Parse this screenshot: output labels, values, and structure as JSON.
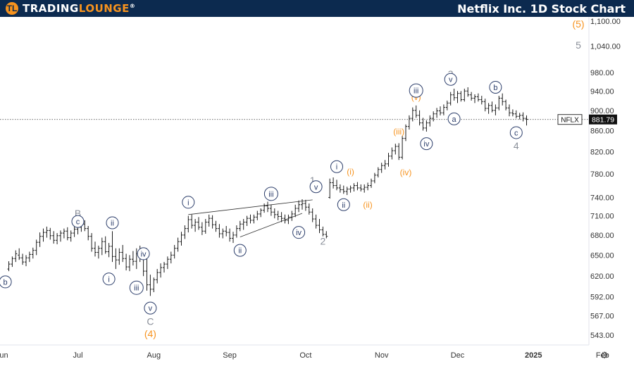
{
  "brand": {
    "logo_letter": "TL",
    "name_part1": "TRADING",
    "name_part2": "LOUNGE",
    "trademark": "®"
  },
  "title": "Netflix Inc. 1D Stock Chart",
  "colors": {
    "header_bg": "#0c2a4f",
    "accent": "#f7931e",
    "wave_circle": "#2c3e6b",
    "wave_gray": "#8a8f99",
    "wave_orange": "#f7931e",
    "bar": "#1a1a1a"
  },
  "chart_data": {
    "type": "ohlc",
    "symbol": "NFLX",
    "last_price": "881.79",
    "price_axis": {
      "ticks": [
        1100,
        1040,
        980,
        940,
        900,
        860,
        820,
        780,
        740,
        710,
        680,
        650,
        620,
        592,
        567,
        543
      ],
      "labels": [
        "1,100.00",
        "1,040.00",
        "980.00",
        "940.00",
        "900.00",
        "860.00",
        "820.00",
        "780.00",
        "740.00",
        "710.00",
        "680.00",
        "650.00",
        "620.00",
        "592.00",
        "567.00",
        "543.00"
      ],
      "scale": "log"
    },
    "time_axis": {
      "labels": [
        "Jun",
        "Jul",
        "Aug",
        "Sep",
        "Oct",
        "Nov",
        "Dec",
        "2025",
        "Feb"
      ],
      "bar_index": [
        -2,
        20,
        42,
        64,
        86,
        108,
        130,
        152,
        172
      ]
    },
    "bars": [
      [
        630,
        641,
        627,
        637
      ],
      [
        637,
        648,
        633,
        645
      ],
      [
        645,
        657,
        640,
        652
      ],
      [
        650,
        660,
        643,
        646
      ],
      [
        646,
        652,
        636,
        640
      ],
      [
        640,
        650,
        634,
        646
      ],
      [
        646,
        655,
        640,
        651
      ],
      [
        651,
        661,
        645,
        657
      ],
      [
        657,
        673,
        650,
        669
      ],
      [
        669,
        684,
        662,
        678
      ],
      [
        678,
        690,
        670,
        684
      ],
      [
        684,
        693,
        676,
        687
      ],
      [
        687,
        691,
        673,
        679
      ],
      [
        679,
        686,
        667,
        672
      ],
      [
        672,
        683,
        666,
        679
      ],
      [
        679,
        687,
        670,
        683
      ],
      [
        683,
        690,
        675,
        686
      ],
      [
        686,
        692,
        672,
        676
      ],
      [
        676,
        687,
        670,
        683
      ],
      [
        683,
        694,
        677,
        689
      ],
      [
        689,
        697,
        681,
        692
      ],
      [
        692,
        702,
        685,
        697
      ],
      [
        697,
        703,
        686,
        690
      ],
      [
        690,
        694,
        672,
        678
      ],
      [
        678,
        683,
        655,
        660
      ],
      [
        660,
        670,
        648,
        654
      ],
      [
        654,
        664,
        645,
        660
      ],
      [
        660,
        676,
        650,
        670
      ],
      [
        670,
        678,
        652,
        655
      ],
      [
        655,
        668,
        647,
        663
      ],
      [
        663,
        686,
        640,
        648
      ],
      [
        648,
        660,
        630,
        643
      ],
      [
        643,
        660,
        636,
        654
      ],
      [
        654,
        665,
        640,
        645
      ],
      [
        645,
        652,
        628,
        633
      ],
      [
        633,
        650,
        627,
        644
      ],
      [
        644,
        656,
        635,
        641
      ],
      [
        641,
        660,
        630,
        652
      ],
      [
        652,
        664,
        640,
        646
      ],
      [
        646,
        655,
        620,
        627
      ],
      [
        627,
        660,
        600,
        608
      ],
      [
        608,
        622,
        593,
        602
      ],
      [
        602,
        618,
        598,
        615
      ],
      [
        615,
        630,
        610,
        625
      ],
      [
        625,
        638,
        618,
        632
      ],
      [
        632,
        640,
        625,
        637
      ],
      [
        637,
        648,
        630,
        644
      ],
      [
        644,
        655,
        638,
        650
      ],
      [
        650,
        665,
        645,
        660
      ],
      [
        660,
        676,
        655,
        670
      ],
      [
        670,
        685,
        664,
        680
      ],
      [
        680,
        695,
        674,
        690
      ],
      [
        690,
        710,
        684,
        704
      ],
      [
        704,
        712,
        690,
        695
      ],
      [
        695,
        705,
        685,
        700
      ],
      [
        700,
        708,
        688,
        692
      ],
      [
        692,
        700,
        680,
        686
      ],
      [
        686,
        705,
        682,
        700
      ],
      [
        700,
        712,
        693,
        706
      ],
      [
        706,
        711,
        690,
        696
      ],
      [
        696,
        702,
        685,
        690
      ],
      [
        690,
        697,
        676,
        682
      ],
      [
        682,
        690,
        675,
        686
      ],
      [
        686,
        694,
        678,
        684
      ],
      [
        684,
        690,
        670,
        675
      ],
      [
        675,
        685,
        668,
        680
      ],
      [
        680,
        695,
        676,
        690
      ],
      [
        690,
        702,
        686,
        697
      ],
      [
        697,
        705,
        688,
        700
      ],
      [
        700,
        710,
        694,
        706
      ],
      [
        706,
        712,
        698,
        703
      ],
      [
        703,
        712,
        698,
        708
      ],
      [
        708,
        718,
        703,
        713
      ],
      [
        713,
        722,
        708,
        719
      ],
      [
        719,
        730,
        715,
        726
      ],
      [
        726,
        733,
        716,
        722
      ],
      [
        722,
        728,
        710,
        716
      ],
      [
        716,
        722,
        706,
        712
      ],
      [
        712,
        718,
        703,
        709
      ],
      [
        709,
        716,
        700,
        706
      ],
      [
        706,
        712,
        698,
        703
      ],
      [
        703,
        712,
        697,
        708
      ],
      [
        708,
        718,
        702,
        713
      ],
      [
        713,
        728,
        708,
        722
      ],
      [
        722,
        735,
        716,
        728
      ],
      [
        728,
        737,
        720,
        730
      ],
      [
        730,
        736,
        718,
        724
      ],
      [
        724,
        730,
        712,
        716
      ],
      [
        716,
        722,
        700,
        705
      ],
      [
        705,
        712,
        690,
        695
      ],
      [
        695,
        705,
        683,
        688
      ],
      [
        688,
        693,
        678,
        681
      ],
      [
        681,
        686,
        675,
        678
      ],
      [
        740,
        772,
        738,
        765
      ],
      [
        765,
        774,
        755,
        760
      ],
      [
        760,
        770,
        752,
        756
      ],
      [
        756,
        762,
        748,
        753
      ],
      [
        753,
        760,
        746,
        750
      ],
      [
        750,
        758,
        744,
        754
      ],
      [
        754,
        760,
        748,
        756
      ],
      [
        756,
        764,
        750,
        760
      ],
      [
        760,
        766,
        752,
        756
      ],
      [
        756,
        762,
        750,
        754
      ],
      [
        754,
        762,
        748,
        757
      ],
      [
        757,
        765,
        752,
        760
      ],
      [
        760,
        772,
        756,
        768
      ],
      [
        768,
        782,
        764,
        778
      ],
      [
        778,
        792,
        774,
        788
      ],
      [
        788,
        800,
        782,
        795
      ],
      [
        795,
        805,
        788,
        798
      ],
      [
        798,
        818,
        793,
        812
      ],
      [
        812,
        828,
        806,
        822
      ],
      [
        822,
        835,
        815,
        830
      ],
      [
        830,
        836,
        805,
        810
      ],
      [
        810,
        850,
        806,
        845
      ],
      [
        845,
        872,
        840,
        868
      ],
      [
        868,
        890,
        862,
        884
      ],
      [
        884,
        906,
        878,
        900
      ],
      [
        900,
        910,
        885,
        890
      ],
      [
        890,
        900,
        870,
        875
      ],
      [
        875,
        885,
        860,
        865
      ],
      [
        865,
        880,
        858,
        875
      ],
      [
        875,
        890,
        868,
        884
      ],
      [
        884,
        898,
        878,
        893
      ],
      [
        893,
        905,
        885,
        899
      ],
      [
        899,
        908,
        890,
        895
      ],
      [
        895,
        912,
        890,
        906
      ],
      [
        906,
        920,
        900,
        915
      ],
      [
        915,
        938,
        910,
        932
      ],
      [
        932,
        945,
        920,
        926
      ],
      [
        926,
        940,
        915,
        935
      ],
      [
        935,
        940,
        918,
        922
      ],
      [
        922,
        945,
        918,
        940
      ],
      [
        940,
        948,
        928,
        932
      ],
      [
        932,
        938,
        920,
        925
      ],
      [
        925,
        933,
        915,
        928
      ],
      [
        928,
        935,
        918,
        922
      ],
      [
        922,
        930,
        912,
        918
      ],
      [
        918,
        924,
        898,
        904
      ],
      [
        904,
        915,
        893,
        910
      ],
      [
        910,
        918,
        896,
        900
      ],
      [
        900,
        912,
        890,
        905
      ],
      [
        905,
        930,
        900,
        925
      ],
      [
        925,
        935,
        910,
        918
      ],
      [
        918,
        922,
        900,
        905
      ],
      [
        905,
        912,
        888,
        895
      ],
      [
        895,
        902,
        888,
        893
      ],
      [
        893,
        900,
        884,
        888
      ],
      [
        888,
        895,
        882,
        890
      ],
      [
        890,
        896,
        878,
        884
      ],
      [
        884,
        890,
        870,
        882
      ]
    ],
    "wave_labels": [
      {
        "text": "b",
        "style": "circle",
        "bar": -1,
        "price": 612
      },
      {
        "text": "B",
        "style": "gray",
        "bar": 20,
        "price": 714
      },
      {
        "text": "c",
        "style": "circle",
        "bar": 20,
        "price": 701
      },
      {
        "text": "ii",
        "style": "circle",
        "bar": 30,
        "price": 699
      },
      {
        "text": "i",
        "style": "circle",
        "bar": 29,
        "price": 616
      },
      {
        "text": "iv",
        "style": "circle",
        "bar": 39,
        "price": 652
      },
      {
        "text": "iii",
        "style": "circle",
        "bar": 37,
        "price": 604
      },
      {
        "text": "v",
        "style": "circle",
        "bar": 41,
        "price": 577
      },
      {
        "text": "C",
        "style": "gray",
        "bar": 41,
        "price": 560
      },
      {
        "text": "(4)",
        "style": "orange",
        "bar": 41,
        "price": 544
      },
      {
        "text": "i",
        "style": "circle",
        "bar": 52,
        "price": 732
      },
      {
        "text": "ii",
        "style": "circle",
        "bar": 67,
        "price": 657
      },
      {
        "text": "iii",
        "style": "circle",
        "bar": 76,
        "price": 746
      },
      {
        "text": "iv",
        "style": "circle",
        "bar": 84,
        "price": 684
      },
      {
        "text": "1",
        "style": "gray",
        "bar": 88,
        "price": 769
      },
      {
        "text": "v",
        "style": "circle",
        "bar": 89,
        "price": 758
      },
      {
        "text": "2",
        "style": "gray",
        "bar": 91,
        "price": 671
      },
      {
        "text": "i",
        "style": "circle",
        "bar": 95,
        "price": 793
      },
      {
        "text": "(i)",
        "style": "orange",
        "bar": 99,
        "price": 784
      },
      {
        "text": "ii",
        "style": "circle",
        "bar": 97,
        "price": 728
      },
      {
        "text": "(ii)",
        "style": "orange",
        "bar": 104,
        "price": 728
      },
      {
        "text": "(iii)",
        "style": "orange",
        "bar": 113,
        "price": 858
      },
      {
        "text": "(iv)",
        "style": "orange",
        "bar": 115,
        "price": 783
      },
      {
        "text": "(v)",
        "style": "orange",
        "bar": 118,
        "price": 927
      },
      {
        "text": "iii",
        "style": "circle",
        "bar": 118,
        "price": 941
      },
      {
        "text": "iv",
        "style": "circle",
        "bar": 121,
        "price": 835
      },
      {
        "text": "3",
        "style": "gray",
        "bar": 128,
        "price": 977
      },
      {
        "text": "v",
        "style": "circle",
        "bar": 128,
        "price": 965
      },
      {
        "text": "a",
        "style": "circle",
        "bar": 129,
        "price": 883
      },
      {
        "text": "b",
        "style": "circle",
        "bar": 141,
        "price": 948
      },
      {
        "text": "c",
        "style": "circle",
        "bar": 147,
        "price": 856
      },
      {
        "text": "4",
        "style": "gray",
        "bar": 147,
        "price": 831
      },
      {
        "text": "5",
        "style": "gray",
        "bar": 165,
        "price": 1042
      },
      {
        "text": "(5)",
        "style": "orange",
        "bar": 165,
        "price": 1091
      }
    ],
    "trendlines": [
      {
        "from": [
          52,
          712
        ],
        "to": [
          88,
          736
        ]
      },
      {
        "from": [
          67,
          677
        ],
        "to": [
          85,
          714
        ]
      }
    ]
  }
}
